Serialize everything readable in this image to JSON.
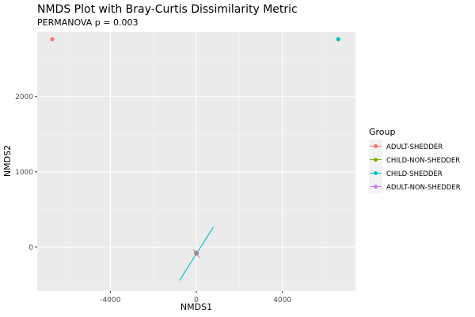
{
  "chart_data": {
    "type": "scatter",
    "title": "NMDS Plot with Bray-Curtis Dissimilarity Metric",
    "subtitle": "PERMANOVA p = 0.003",
    "xlabel": "NMDS1",
    "ylabel": "NMDS2",
    "xlim": [
      -7400,
      7400
    ],
    "ylim": [
      -580,
      2860
    ],
    "x_ticks": [
      -4000,
      0,
      4000
    ],
    "x_tick_labels": [
      "-4000",
      "0",
      "4000"
    ],
    "y_ticks": [
      0,
      1000,
      2000
    ],
    "y_tick_labels": [
      "0",
      "1000",
      "2000"
    ],
    "grid": true,
    "legend": {
      "title": "Group",
      "position": "right",
      "entries": [
        "ADULT-SHEDDER",
        "CHILD-NON-SHEDDER",
        "CHILD-SHEDDER",
        "ADULT-NON-SHEDDER"
      ]
    },
    "colors": {
      "ADULT-SHEDDER": "#F8766D",
      "CHILD-NON-SHEDDER": "#7CAE00",
      "CHILD-SHEDDER": "#00BFC4",
      "ADULT-NON-SHEDDER": "#C77CFF"
    },
    "series": [
      {
        "name": "ADULT-SHEDDER",
        "points": [
          {
            "x": -6700,
            "y": 2760
          },
          {
            "x": -10,
            "y": -80
          },
          {
            "x": 0,
            "y": -85
          },
          {
            "x": 5,
            "y": -75
          }
        ],
        "ellipse": [
          [
            -150,
            -30
          ],
          [
            150,
            -140
          ]
        ]
      },
      {
        "name": "CHILD-NON-SHEDDER",
        "points": [
          {
            "x": 0,
            "y": -80
          },
          {
            "x": -5,
            "y": -82
          }
        ],
        "ellipse": []
      },
      {
        "name": "CHILD-SHEDDER",
        "points": [
          {
            "x": 6600,
            "y": 2760
          },
          {
            "x": 0,
            "y": -78
          },
          {
            "x": 10,
            "y": -84
          }
        ],
        "ellipse": [
          [
            -780,
            -440
          ],
          [
            800,
            270
          ]
        ]
      },
      {
        "name": "ADULT-NON-SHEDDER",
        "points": [
          {
            "x": 0,
            "y": -80
          },
          {
            "x": 3,
            "y": -78
          }
        ],
        "ellipse": []
      }
    ]
  }
}
